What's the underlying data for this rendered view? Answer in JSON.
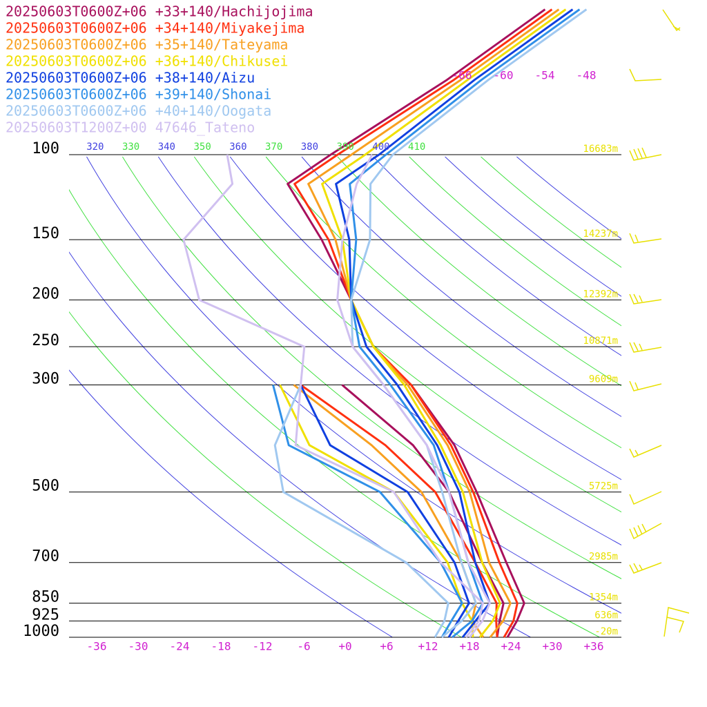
{
  "chart_data": {
    "type": "skewt",
    "legend": [
      "20250603T0600Z+06 +33+140/Hachijojima",
      "20250603T0600Z+06 +34+140/Miyakejima",
      "20250603T0600Z+06 +35+140/Tateyama",
      "20250603T0600Z+06 +36+140/Chikusei",
      "20250603T0600Z+06 +38+140/Aizu",
      "20250603T0600Z+06 +39+140/Shonai",
      "20250603T0600Z+06 +40+140/Oogata",
      "20250603T1200Z+00 47646_Tateno"
    ],
    "levels": [
      1000,
      925,
      850,
      700,
      500,
      400,
      300,
      250,
      200,
      150,
      115,
      100,
      70,
      50
    ],
    "series": [
      {
        "name": "Hachijojima",
        "color": "#a8105c",
        "temperature": [
          23.5,
          22.5,
          21,
          12.5,
          -2,
          -12,
          -27,
          -38,
          -48,
          -61,
          -74,
          -72,
          -66,
          -62
        ],
        "dewpoint": [
          22,
          20,
          18,
          9,
          -6,
          -18,
          -37,
          null,
          null,
          null,
          null,
          null,
          null,
          null
        ]
      },
      {
        "name": "Miyakejima",
        "color": "#ff3010",
        "temperature": [
          23,
          22,
          20,
          11.5,
          -2.5,
          -12.5,
          -27,
          -38,
          -48,
          -60,
          -73,
          -71,
          -65,
          -61
        ],
        "dewpoint": [
          22,
          19.5,
          17,
          8,
          -8,
          -22,
          -43,
          null,
          null,
          null,
          null,
          null,
          null,
          null
        ]
      },
      {
        "name": "Tateyama",
        "color": "#f8a020",
        "temperature": [
          21,
          20.5,
          19,
          10,
          -3,
          -13,
          -27.5,
          -38,
          -48,
          -59,
          -71,
          -69,
          -64,
          -60
        ],
        "dewpoint": [
          20,
          16,
          14,
          6,
          -10,
          -24,
          -44,
          null,
          null,
          null,
          null,
          null,
          null,
          null
        ]
      },
      {
        "name": "Chikusei",
        "color": "#f0e000",
        "temperature": [
          19.5,
          19,
          17.5,
          9,
          -4,
          -14,
          -28,
          -38,
          -48,
          -58,
          -69,
          -67,
          -63,
          -59
        ],
        "dewpoint": [
          18.5,
          16,
          12,
          4,
          -14,
          -33,
          -46,
          null,
          null,
          null,
          null,
          null,
          null,
          null
        ]
      },
      {
        "name": "Aizu",
        "color": "#1040e0",
        "temperature": [
          17,
          16.5,
          16,
          8,
          -4.5,
          -14.5,
          -29,
          -39,
          -48,
          -57,
          -67,
          -65,
          -62,
          -58
        ],
        "dewpoint": [
          15,
          14,
          13,
          5,
          -12,
          -30,
          -43,
          null,
          null,
          null,
          null,
          null,
          null,
          null
        ]
      },
      {
        "name": "Shonai",
        "color": "#3090e8",
        "temperature": [
          15.5,
          16,
          15,
          7,
          -6,
          -15,
          -30,
          -40,
          -48,
          -56,
          -65,
          -64,
          -61,
          -57
        ],
        "dewpoint": [
          14,
          13,
          12,
          3,
          -16,
          -36,
          -47,
          null,
          null,
          null,
          null,
          null,
          null,
          null
        ]
      },
      {
        "name": "Oogata",
        "color": "#a0c8f0",
        "temperature": [
          14,
          14.5,
          14,
          6,
          -7,
          -16,
          -31,
          -41,
          -48,
          -54,
          -62,
          -63,
          -60,
          -56
        ],
        "dewpoint": [
          13,
          12,
          10,
          -2,
          -30,
          -38,
          -43,
          null,
          null,
          null,
          null,
          null,
          null,
          null
        ]
      },
      {
        "name": "Tateno",
        "color": "#d0c0f0",
        "temperature": [
          18,
          17.5,
          16,
          7,
          -6,
          -16,
          -31,
          -41,
          -50,
          -58,
          -64,
          -66,
          null,
          null
        ],
        "dewpoint": [
          17.5,
          17,
          15,
          3,
          -14,
          -35,
          -43,
          -48,
          -70,
          -81,
          -82,
          -87,
          null,
          null
        ]
      }
    ],
    "ylim": [
      1000,
      100
    ],
    "yticks": [
      100,
      150,
      200,
      250,
      300,
      500,
      700,
      850,
      925,
      1000
    ],
    "heights": [
      "16683m",
      "14237m",
      "12392m",
      "10871m",
      "9609m",
      "5725m",
      "2985m",
      "1354m",
      "636m",
      "-20m"
    ],
    "xlim": [
      -40,
      40
    ],
    "xticks": [
      -36,
      -30,
      -24,
      -18,
      -12,
      -6,
      {
        "value": 0,
        "label": "+0"
      },
      {
        "value": 6,
        "label": "+6"
      },
      {
        "value": 12,
        "label": "+12"
      },
      {
        "value": 18,
        "label": "+18"
      },
      {
        "value": 24,
        "label": "+24"
      },
      {
        "value": 30,
        "label": "+30"
      },
      {
        "value": 36,
        "label": "+36"
      }
    ],
    "upper_isotherm_labels": [
      -66,
      -60,
      -54,
      -48
    ],
    "theta_labels": [
      320,
      330,
      340,
      350,
      360,
      370,
      380,
      390,
      400,
      410
    ],
    "theta_colors": [
      "#4040e0",
      "#40e040"
    ],
    "isotherm_color": "#d020d0",
    "height_color": "#e8e000",
    "log_scale": true
  }
}
